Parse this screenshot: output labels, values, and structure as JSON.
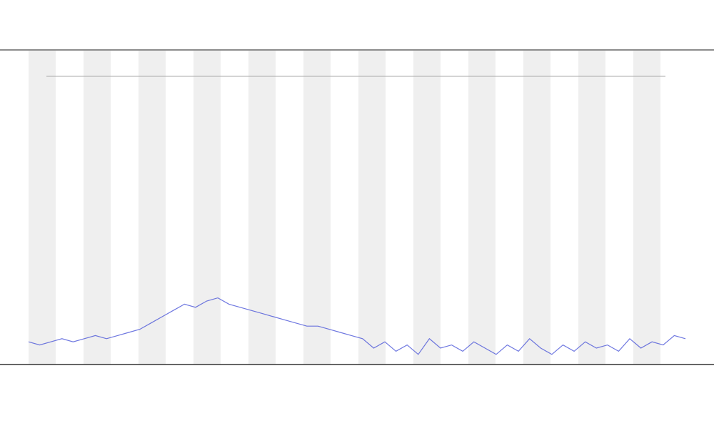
{
  "chart_data": {
    "type": "line",
    "values": [
      7,
      6,
      7,
      8,
      7,
      8,
      9,
      8,
      9,
      10,
      11,
      13,
      15,
      17,
      19,
      18,
      20,
      21,
      19,
      18,
      17,
      16,
      15,
      14,
      13,
      12,
      12,
      11,
      10,
      9,
      8,
      5,
      7,
      4,
      6,
      3,
      8,
      5,
      6,
      4,
      7,
      5,
      3,
      6,
      4,
      8,
      5,
      3,
      6,
      4,
      7,
      5,
      6,
      4,
      8,
      5,
      7,
      6,
      9,
      8
    ],
    "color": "#4a55d8",
    "ylim": [
      0,
      100
    ]
  }
}
